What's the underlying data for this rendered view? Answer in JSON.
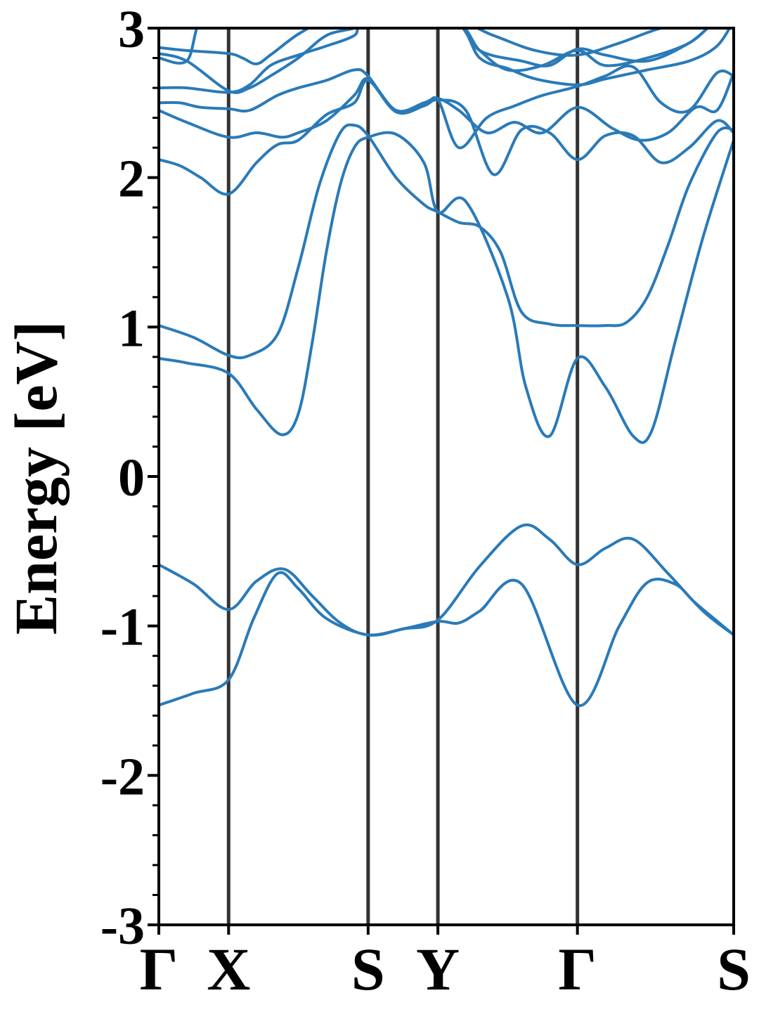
{
  "chart_data": {
    "type": "line",
    "title": "",
    "xlabel": "",
    "ylabel": "Energy [eV]",
    "ylim": [
      -3,
      3
    ],
    "yticks": [
      -3,
      -2,
      -1,
      0,
      1,
      2,
      3
    ],
    "yticks_minor_step": 0.2,
    "path_points": [
      "Γ",
      "X",
      "S",
      "Y",
      "Γ",
      "S"
    ],
    "path_positions": [
      0,
      0.5,
      1.5,
      2.0,
      3.0,
      4.12
    ],
    "grid": false,
    "legend": "none",
    "colors": {
      "bands": "#2a7ab8",
      "path_lines": "#333333",
      "axes": "#000000"
    },
    "series": [
      {
        "x": [
          0,
          0.25,
          0.5,
          0.68,
          0.85,
          1.0,
          1.2,
          1.5,
          1.75,
          2.0,
          2.15,
          2.3,
          2.6,
          3.0,
          3.3,
          3.5,
          3.7,
          3.85,
          4.12
        ],
        "y": [
          -1.53,
          -1.45,
          -1.36,
          -0.95,
          -0.65,
          -0.75,
          -0.95,
          -1.06,
          -1.02,
          -0.97,
          -0.98,
          -0.9,
          -0.72,
          -1.53,
          -1.0,
          -0.71,
          -0.72,
          -0.85,
          -1.06
        ]
      },
      {
        "x": [
          0,
          0.25,
          0.5,
          0.7,
          0.9,
          1.1,
          1.3,
          1.5,
          1.75,
          2.0,
          2.3,
          2.6,
          2.8,
          3.0,
          3.2,
          3.4,
          3.65,
          3.9,
          4.12
        ],
        "y": [
          -0.59,
          -0.72,
          -0.89,
          -0.7,
          -0.62,
          -0.8,
          -0.98,
          -1.06,
          -1.02,
          -0.96,
          -0.6,
          -0.33,
          -0.42,
          -0.59,
          -0.48,
          -0.42,
          -0.65,
          -0.9,
          -1.06
        ]
      },
      {
        "x": [
          0,
          0.2,
          0.5,
          0.7,
          0.88,
          1.0,
          1.1,
          1.2,
          1.3,
          1.4,
          1.5,
          1.7,
          1.9,
          2.0,
          2.2,
          2.5,
          2.63,
          2.8,
          3.0,
          3.2,
          3.4,
          3.53,
          3.7,
          3.9,
          4.12
        ],
        "y": [
          0.79,
          0.76,
          0.69,
          0.45,
          0.28,
          0.42,
          0.9,
          1.5,
          1.95,
          2.2,
          2.27,
          2.29,
          2.1,
          1.77,
          1.84,
          1.2,
          0.6,
          0.27,
          0.79,
          0.6,
          0.27,
          0.3,
          0.9,
          1.6,
          2.25
        ]
      },
      {
        "x": [
          0,
          0.25,
          0.5,
          0.65,
          0.85,
          1.0,
          1.15,
          1.3,
          1.4,
          1.5,
          1.7,
          1.9,
          2.0,
          2.15,
          2.3,
          2.45,
          2.6,
          2.8,
          3.0,
          3.2,
          3.35,
          3.5,
          3.65,
          3.8,
          4.0,
          4.12
        ],
        "y": [
          1.01,
          0.93,
          0.81,
          0.81,
          0.95,
          1.4,
          1.95,
          2.3,
          2.35,
          2.28,
          2.0,
          1.82,
          1.77,
          1.7,
          1.67,
          1.5,
          1.1,
          1.02,
          1.01,
          1.01,
          1.03,
          1.2,
          1.55,
          1.95,
          2.3,
          2.32
        ]
      },
      {
        "x": [
          0,
          0.15,
          0.3,
          0.5,
          0.7,
          0.85,
          1.0,
          1.2,
          1.4,
          1.5,
          1.7,
          1.9,
          2.0,
          2.2,
          2.4,
          2.6,
          2.8,
          3.0,
          3.2,
          3.4,
          3.6,
          3.8,
          4.0,
          4.12
        ],
        "y": [
          2.12,
          2.08,
          2.0,
          1.89,
          2.1,
          2.22,
          2.25,
          2.42,
          2.5,
          2.65,
          2.44,
          2.48,
          2.52,
          2.45,
          2.02,
          2.32,
          2.3,
          2.12,
          2.28,
          2.28,
          2.1,
          2.2,
          2.38,
          2.3
        ]
      },
      {
        "x": [
          0,
          0.2,
          0.5,
          0.7,
          0.88,
          1.0,
          1.2,
          1.4,
          1.5,
          1.7,
          1.9,
          2.0,
          2.15,
          2.35,
          2.55,
          2.75,
          3.0,
          3.25,
          3.45,
          3.65,
          3.85,
          4.0,
          4.12
        ],
        "y": [
          2.45,
          2.37,
          2.27,
          2.3,
          2.27,
          2.3,
          2.38,
          2.55,
          2.66,
          2.45,
          2.5,
          2.53,
          2.45,
          2.3,
          2.37,
          2.3,
          2.47,
          2.33,
          2.25,
          2.3,
          2.47,
          2.45,
          2.7
        ]
      },
      {
        "x": [
          0,
          0.15,
          0.3,
          0.5,
          0.65,
          0.85,
          1.0,
          1.2,
          1.4,
          1.5,
          1.7,
          1.9,
          2.0,
          2.15,
          2.35,
          2.55,
          2.75,
          3.0,
          3.2,
          3.4,
          3.6,
          3.8,
          4.0,
          4.12
        ],
        "y": [
          2.5,
          2.5,
          2.47,
          2.46,
          2.45,
          2.55,
          2.6,
          2.65,
          2.72,
          2.68,
          2.44,
          2.48,
          2.52,
          2.2,
          2.4,
          2.48,
          2.55,
          2.61,
          2.68,
          2.74,
          2.5,
          2.45,
          2.7,
          2.68
        ]
      },
      {
        "x": [
          0,
          0.2,
          0.5,
          0.65,
          0.8,
          1.0,
          1.2,
          1.4,
          1.5,
          2.1,
          2.3,
          2.5,
          2.7,
          3.0,
          3.2,
          3.5,
          3.8,
          4.0,
          4.12
        ],
        "y": [
          2.6,
          2.6,
          2.57,
          2.62,
          2.75,
          2.82,
          2.88,
          2.95,
          3.05,
          3.05,
          2.8,
          2.73,
          2.66,
          2.62,
          2.66,
          2.72,
          2.78,
          2.88,
          3.05
        ]
      },
      {
        "x": [
          0,
          0.2,
          0.5,
          0.65,
          0.8,
          1.0,
          1.2,
          1.4,
          1.5,
          2.1,
          2.3,
          2.5,
          2.75,
          3.0,
          3.2,
          3.5,
          3.8,
          4.0,
          4.12
        ],
        "y": [
          2.83,
          2.78,
          2.58,
          2.6,
          2.68,
          2.8,
          2.95,
          3.0,
          3.05,
          3.05,
          2.85,
          2.72,
          2.75,
          2.85,
          2.75,
          2.8,
          2.9,
          3.05,
          3.05
        ]
      },
      {
        "x": [
          0,
          0.2,
          0.5,
          0.6,
          0.7,
          0.8,
          1.0,
          1.2,
          1.4,
          2.1,
          2.3,
          2.6,
          2.8,
          3.0,
          3.2,
          3.5,
          3.8,
          4.0,
          4.12
        ],
        "y": [
          2.87,
          2.85,
          2.83,
          2.8,
          2.76,
          2.82,
          2.96,
          3.05,
          3.05,
          3.05,
          2.85,
          2.78,
          2.75,
          2.86,
          2.82,
          2.78,
          2.9,
          3.05,
          3.05
        ]
      },
      {
        "x": [
          0,
          0.2,
          0.3,
          0.5,
          0.7,
          1.0,
          1.5,
          2.1,
          2.4,
          2.7,
          3.0,
          3.3,
          3.6,
          3.9,
          4.12
        ],
        "y": [
          2.8,
          2.78,
          3.05,
          3.05,
          3.05,
          3.05,
          3.05,
          3.05,
          2.95,
          2.85,
          2.82,
          2.9,
          3.0,
          3.05,
          3.05
        ]
      }
    ]
  }
}
